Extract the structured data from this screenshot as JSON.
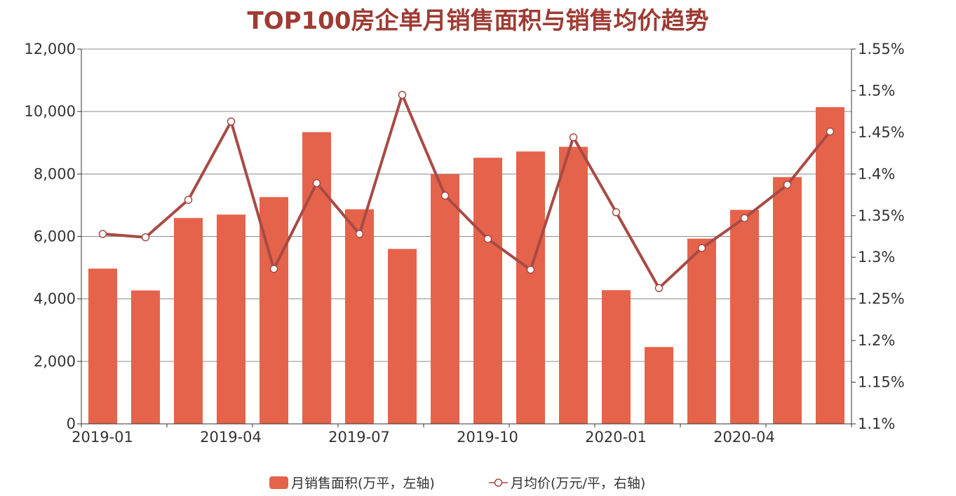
{
  "chart_data": {
    "type": "bar",
    "title": "TOP100房企单月销售面积与销售均价趋势",
    "categories": [
      "2019-01",
      "2019-02",
      "2019-03",
      "2019-04",
      "2019-05",
      "2019-06",
      "2019-07",
      "2019-08",
      "2019-09",
      "2019-10",
      "2019-11",
      "2019-12",
      "2020-01",
      "2020-02",
      "2020-03",
      "2020-04",
      "2020-05",
      "2020-06"
    ],
    "x_tick_labels": [
      "2019-01",
      "2019-04",
      "2019-07",
      "2019-10",
      "2020-01",
      "2020-04"
    ],
    "left_axis": {
      "min": 0,
      "max": 12000,
      "ticks": [
        "0",
        "2,000",
        "4,000",
        "6,000",
        "8,000",
        "10,000",
        "12,000"
      ]
    },
    "right_axis": {
      "min": 1.1,
      "max": 1.55,
      "ticks": [
        "1.1%",
        "1.15%",
        "1.2%",
        "1.25%",
        "1.3%",
        "1.35%",
        "1.4%",
        "1.45%",
        "1.5%",
        "1.55%"
      ]
    },
    "grid": true,
    "legend_position": "bottom-center",
    "series": [
      {
        "name": "月销售面积(万平，左轴)",
        "type": "bar",
        "axis": "left",
        "color": "#e5634a",
        "values": [
          4970,
          4270,
          6590,
          6700,
          7260,
          9340,
          6870,
          5600,
          7990,
          8520,
          8720,
          8870,
          4280,
          2460,
          5930,
          6850,
          7900,
          10140
        ]
      },
      {
        "name": "月均价(万元/平，右轴)",
        "type": "line",
        "axis": "right",
        "color": "#a84a45",
        "values": [
          1.328,
          1.324,
          1.369,
          1.463,
          1.286,
          1.389,
          1.328,
          1.495,
          1.374,
          1.322,
          1.285,
          1.444,
          1.354,
          1.263,
          1.311,
          1.347,
          1.387,
          1.451
        ]
      }
    ]
  }
}
